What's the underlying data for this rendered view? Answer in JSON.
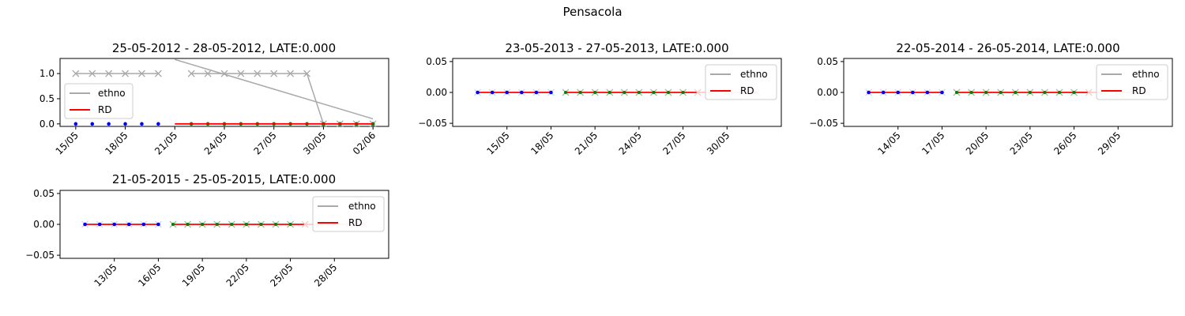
{
  "suptitle": "Pensacola",
  "colors": {
    "ethno": "#a9a9a9",
    "rd": "#ff0000",
    "blue_dots": "#0000ff",
    "green_dots": "#008000",
    "light_marker": "#f4cccc"
  },
  "chart_data": [
    {
      "type": "line",
      "title": "25-05-2012 - 28-05-2012, LATE:0.000",
      "legend_loc": "center-left",
      "ylim": [
        -0.05,
        1.3
      ],
      "yticks": [
        "0.0",
        "0.5",
        "1.0"
      ],
      "xticks": [
        "15/05",
        "18/05",
        "21/05",
        "24/05",
        "27/05",
        "30/05",
        "02/06"
      ],
      "series": [
        {
          "name": "ethno",
          "x": [
            "15/05",
            "16/05",
            "17/05",
            "18/05",
            "19/05",
            "20/05",
            "22/05",
            "23/05",
            "24/05",
            "25/05",
            "26/05",
            "27/05",
            "28/05",
            "29/05",
            "30/05",
            "31/05",
            "01/06",
            "02/06"
          ],
          "values": [
            1,
            1,
            1,
            1,
            1,
            1,
            1,
            1,
            1,
            1,
            1,
            1,
            1,
            1,
            0,
            0,
            0,
            0
          ]
        },
        {
          "name": "RD",
          "x": [
            "21/05",
            "02/06"
          ],
          "values": [
            0,
            0
          ]
        },
        {
          "name": "",
          "x": [
            "21/05",
            "02/06"
          ],
          "values": [
            1.28,
            0.1
          ]
        }
      ]
    },
    {
      "type": "line",
      "title": "23-05-2013 - 27-05-2013, LATE:0.000",
      "legend_loc": "top-right",
      "ylim": [
        -0.055,
        0.055
      ],
      "yticks": [
        "−0.05",
        "0.00",
        "0.05"
      ],
      "xticks": [
        "15/05",
        "18/05",
        "21/05",
        "24/05",
        "27/05",
        "30/05"
      ],
      "series": [
        {
          "name": "ethno",
          "x": [
            "13/05",
            "01/06"
          ],
          "values": [
            0,
            0
          ]
        },
        {
          "name": "RD",
          "x": [
            "13/05",
            "01/06"
          ],
          "values": [
            0,
            0
          ]
        }
      ]
    },
    {
      "type": "line",
      "title": "22-05-2014 - 26-05-2014, LATE:0.000",
      "legend_loc": "top-right",
      "ylim": [
        -0.055,
        0.055
      ],
      "yticks": [
        "−0.05",
        "0.00",
        "0.05"
      ],
      "xticks": [
        "14/05",
        "17/05",
        "20/05",
        "23/05",
        "26/05",
        "29/05"
      ],
      "series": [
        {
          "name": "ethno",
          "x": [
            "12/05",
            "31/05"
          ],
          "values": [
            0,
            0
          ]
        },
        {
          "name": "RD",
          "x": [
            "12/05",
            "31/05"
          ],
          "values": [
            0,
            0
          ]
        }
      ]
    },
    {
      "type": "line",
      "title": "21-05-2015 - 25-05-2015, LATE:0.000",
      "legend_loc": "top-right",
      "ylim": [
        -0.055,
        0.055
      ],
      "yticks": [
        "−0.05",
        "0.00",
        "0.05"
      ],
      "xticks": [
        "13/05",
        "16/05",
        "19/05",
        "22/05",
        "25/05",
        "28/05"
      ],
      "series": [
        {
          "name": "ethno",
          "x": [
            "11/05",
            "30/05"
          ],
          "values": [
            0,
            0
          ]
        },
        {
          "name": "RD",
          "x": [
            "11/05",
            "30/05"
          ],
          "values": [
            0,
            0
          ]
        }
      ]
    }
  ]
}
